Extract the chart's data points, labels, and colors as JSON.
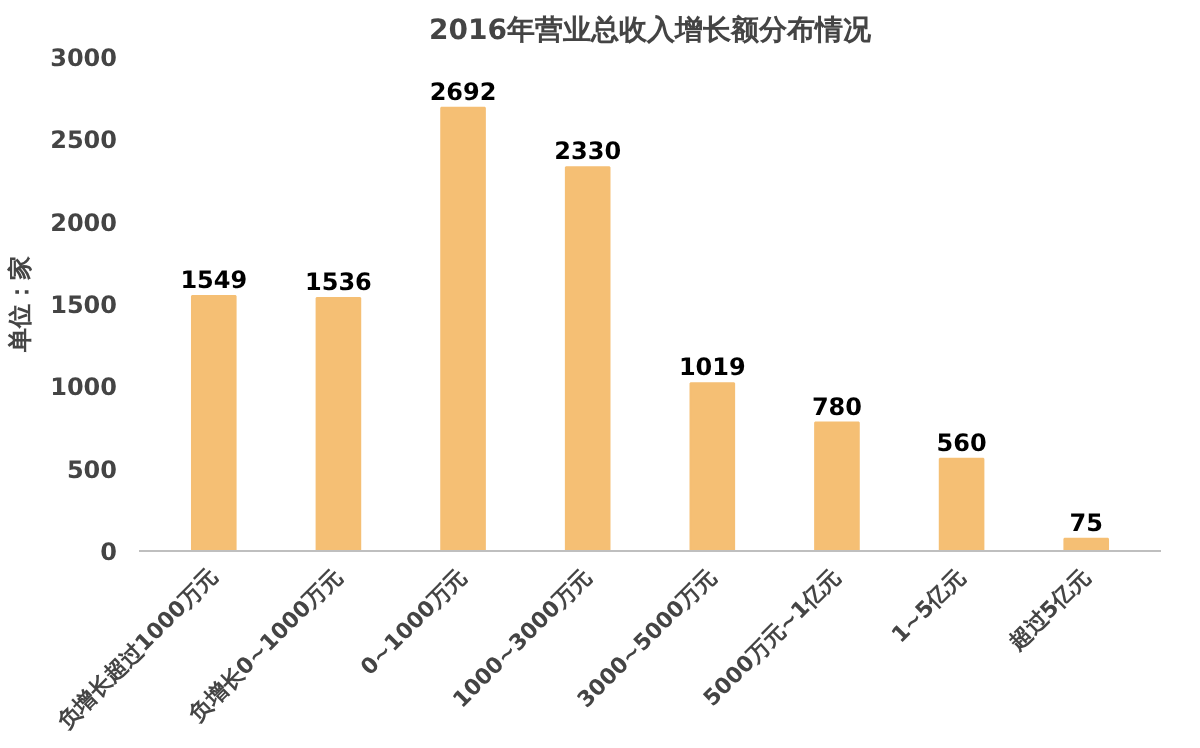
{
  "chart_data": {
    "type": "bar",
    "title": "2016年营业总收入增长额分布情况",
    "ylabel": "单位：家",
    "categories": [
      "负增长超过1000万元",
      "负增长0~1000万元",
      "0~1000万元",
      "1000~3000万元",
      "3000~5000万元",
      "5000万元~1亿元",
      "1~5亿元",
      "超过5亿元"
    ],
    "values": [
      1549,
      1536,
      2692,
      2330,
      1019,
      780,
      560,
      75
    ],
    "color": "#f5bf74",
    "ylim": [
      0,
      3000
    ],
    "yticks": [
      0,
      500,
      1000,
      1500,
      2000,
      2500,
      3000
    ],
    "data_labels": true,
    "grid": false
  }
}
